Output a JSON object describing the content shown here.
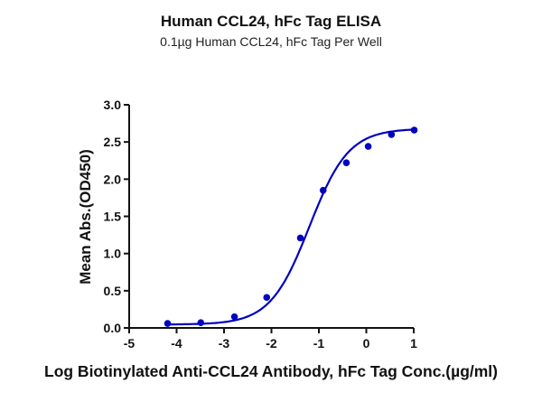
{
  "chart_data": {
    "type": "line",
    "title": "Human CCL24, hFc Tag ELISA",
    "subtitle": "0.1µg Human CCL24, hFc Tag Per Well",
    "xlabel": "Log Biotinylated Anti-CCL24 Antibody, hFc Tag Conc.(µg/ml)",
    "ylabel": "Mean Abs.(OD450)",
    "xlim": [
      -5,
      1
    ],
    "ylim": [
      0,
      3.0
    ],
    "xticks": [
      "-5",
      "-4",
      "-3",
      "-2",
      "-1",
      "0",
      "1"
    ],
    "yticks": [
      "0.0",
      "0.5",
      "1.0",
      "1.5",
      "2.0",
      "2.5",
      "3.0"
    ],
    "grid": false,
    "legend": null,
    "series": [
      {
        "name": "Human CCL24, hFc Tag",
        "color": "#0000c0",
        "fit": "4-parameter sigmoidal curve",
        "x": [
          -4.19,
          -3.49,
          -2.78,
          -2.1,
          -1.39,
          -0.91,
          -0.42,
          0.04,
          0.53,
          1.01
        ],
        "y": [
          0.06,
          0.07,
          0.15,
          0.41,
          1.21,
          1.85,
          2.22,
          2.44,
          2.6,
          2.66
        ]
      }
    ]
  }
}
